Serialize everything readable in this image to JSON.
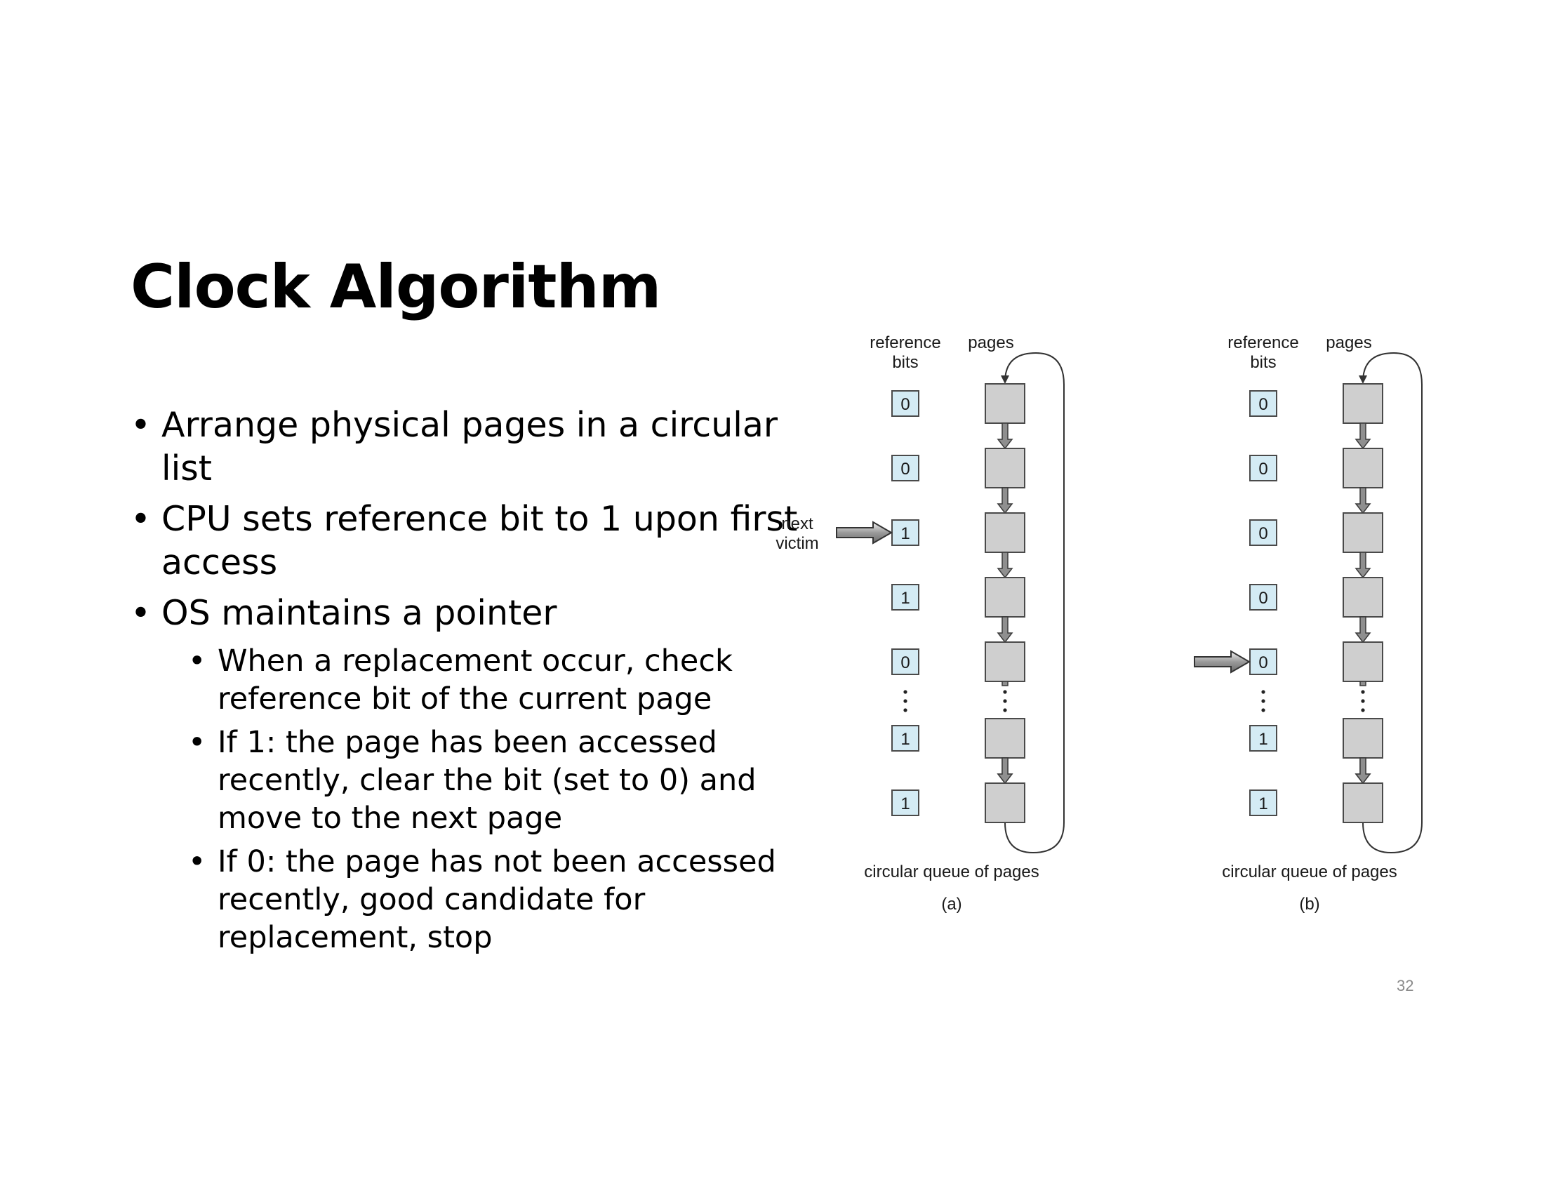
{
  "slide": {
    "title": "Clock Algorithm",
    "page_number": "32",
    "bullets": [
      {
        "level": 1,
        "text": "Arrange physical pages in a circular list"
      },
      {
        "level": 1,
        "text": "CPU sets reference bit to 1 upon first access"
      },
      {
        "level": 1,
        "text": "OS maintains a pointer"
      },
      {
        "level": 2,
        "text": "When a replacement occur, check reference bit of the current page"
      },
      {
        "level": 2,
        "text": "If 1: the page has been accessed recently, clear the bit (set to 0) and move to the next page"
      },
      {
        "level": 2,
        "text": "If 0: the page has not been accessed recently, good candidate for replacement, stop"
      }
    ]
  },
  "diagram": {
    "ref_bits_header": "reference bits",
    "pages_header": "pages",
    "queue_label": "circular queue of pages",
    "pointer_label": "next victim",
    "panels": [
      {
        "caption": "(a)",
        "bits": [
          "0",
          "0",
          "1",
          "1",
          "0",
          "1",
          "1"
        ],
        "pointer_index": 2,
        "show_pointer_label": true
      },
      {
        "caption": "(b)",
        "bits": [
          "0",
          "0",
          "0",
          "0",
          "0",
          "1",
          "1"
        ],
        "pointer_index": 4,
        "show_pointer_label": false
      }
    ],
    "colors": {
      "bit_fill": "#d4ebf4",
      "page_fill": "#cfcfcf",
      "arrow_fill": "#8f8f8f",
      "page_number": "#8a8a8a"
    }
  }
}
